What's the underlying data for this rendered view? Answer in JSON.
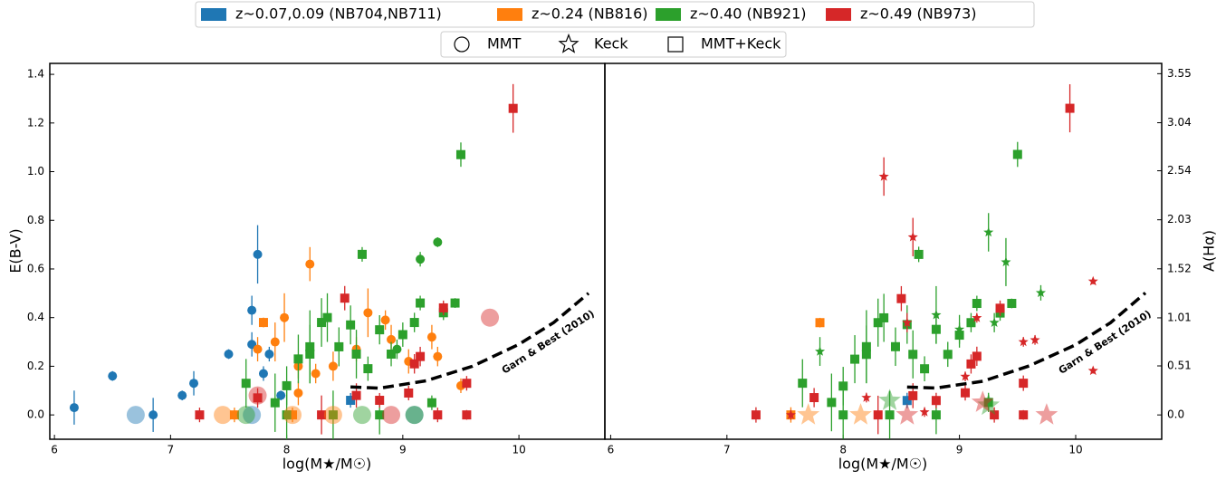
{
  "legend": {
    "groups": [
      {
        "label": "z~0.07,0.09 (NB704,NB711)",
        "color": "#1f77b4"
      },
      {
        "label": "z~0.24 (NB816)",
        "color": "#ff7f0e"
      },
      {
        "label": "z~0.40 (NB921)",
        "color": "#2ca02c"
      },
      {
        "label": "z~0.49 (NB973)",
        "color": "#d62728"
      }
    ],
    "markers": [
      {
        "label": "MMT",
        "shape": "circle"
      },
      {
        "label": "Keck",
        "shape": "star"
      },
      {
        "label": "MMT+Keck",
        "shape": "square"
      }
    ]
  },
  "chart_data": [
    {
      "type": "scatter",
      "xlabel": "log(M★/M☉)",
      "ylabel": "E(B-V)",
      "xlim": [
        5.96,
        10.74
      ],
      "xticks": [
        6,
        7,
        8,
        9,
        10
      ],
      "ylim": [
        -0.1,
        1.445
      ],
      "yticks": [
        {
          "value": 0,
          "label": "0.0"
        },
        0.2,
        0.4,
        0.6,
        0.8,
        {
          "value": 1,
          "label": "1.0"
        },
        1.2,
        1.4
      ],
      "curve": {
        "label": "Garn & Best (2010)",
        "x": [
          8.55,
          8.8,
          9.2,
          9.6,
          10.0,
          10.3,
          10.6
        ],
        "values": [
          0.115,
          0.11,
          0.14,
          0.2,
          0.29,
          0.38,
          0.5
        ]
      },
      "series": [
        {
          "color": "#1f77b4",
          "marker": "circle",
          "x": [
            6.17,
            6.5,
            7.1,
            7.2,
            7.5,
            7.7,
            7.75,
            7.8,
            7.85,
            7.7,
            7.95,
            6.85
          ],
          "values": [
            0.03,
            0.16,
            0.08,
            0.13,
            0.25,
            0.43,
            0.66,
            0.17,
            0.25,
            0.29,
            0.08,
            0.0
          ],
          "errors": [
            0.07,
            0.02,
            0.02,
            0.05,
            0.02,
            0.06,
            0.12,
            0.03,
            0.03,
            0.05,
            0.02,
            0.07
          ]
        },
        {
          "color": "#1f77b4",
          "marker": "square",
          "x": [
            8.55
          ],
          "values": [
            0.06
          ],
          "errors": [
            0.03
          ]
        },
        {
          "color": "#ff7f0e",
          "marker": "circle",
          "x": [
            7.75,
            7.9,
            7.98,
            8.1,
            8.2,
            8.25,
            8.4,
            8.6,
            8.7,
            8.85,
            8.9,
            9.05,
            9.25,
            9.3,
            9.5,
            8.1
          ],
          "values": [
            0.27,
            0.3,
            0.4,
            0.2,
            0.62,
            0.17,
            0.2,
            0.27,
            0.42,
            0.39,
            0.31,
            0.22,
            0.32,
            0.24,
            0.12,
            0.09
          ],
          "errors": [
            0.05,
            0.08,
            0.1,
            0.05,
            0.07,
            0.04,
            0.06,
            0.05,
            0.1,
            0.04,
            0.06,
            0.05,
            0.05,
            0.04,
            0.03,
            0.05
          ]
        },
        {
          "color": "#ff7f0e",
          "marker": "square",
          "x": [
            7.8,
            7.55,
            8.05
          ],
          "values": [
            0.38,
            0.0,
            0.0
          ],
          "errors": [
            0.02,
            0.03,
            0.03
          ]
        },
        {
          "color": "#2ca02c",
          "marker": "square",
          "x": [
            7.65,
            7.9,
            8.0,
            8.1,
            8.2,
            8.2,
            8.3,
            8.35,
            8.45,
            8.55,
            8.6,
            8.65,
            8.7,
            8.8,
            8.9,
            9.0,
            9.1,
            9.15,
            9.35,
            9.45,
            9.5,
            9.25,
            8.4,
            8.0,
            8.8
          ],
          "values": [
            0.13,
            0.05,
            0.12,
            0.23,
            0.28,
            0.25,
            0.38,
            0.4,
            0.28,
            0.37,
            0.25,
            0.66,
            0.19,
            0.35,
            0.25,
            0.33,
            0.38,
            0.46,
            0.42,
            0.46,
            1.07,
            0.05,
            0.0,
            0.0,
            0.0
          ],
          "errors": [
            0.1,
            0.12,
            0.08,
            0.1,
            0.15,
            0.12,
            0.1,
            0.1,
            0.08,
            0.08,
            0.1,
            0.03,
            0.05,
            0.06,
            0.05,
            0.05,
            0.04,
            0.03,
            0.03,
            0.02,
            0.05,
            0.03,
            0.1,
            0.1,
            0.08
          ]
        },
        {
          "color": "#2ca02c",
          "marker": "circle",
          "x": [
            9.15,
            9.3,
            8.95
          ],
          "values": [
            0.64,
            0.71,
            0.27
          ],
          "errors": [
            0.03,
            0.02,
            0.04
          ]
        },
        {
          "color": "#d62728",
          "marker": "square",
          "x": [
            7.25,
            7.75,
            8.5,
            8.6,
            8.8,
            9.05,
            9.1,
            9.15,
            9.35,
            9.55,
            9.95,
            9.55,
            8.3,
            9.3
          ],
          "values": [
            0.0,
            0.07,
            0.48,
            0.08,
            0.06,
            0.09,
            0.21,
            0.24,
            0.44,
            0.13,
            1.26,
            0.0,
            0.0,
            0.0
          ],
          "errors": [
            0.03,
            0.04,
            0.05,
            0.05,
            0.03,
            0.03,
            0.04,
            0.04,
            0.03,
            0.03,
            0.1,
            0.02,
            0.08,
            0.03
          ]
        },
        {
          "color": "#1f77b4",
          "marker": "circle",
          "alpha": 0.45,
          "size": "large",
          "x": [
            6.7,
            7.7,
            9.1
          ],
          "values": [
            0.0,
            0.0,
            0.0
          ]
        },
        {
          "color": "#ff7f0e",
          "marker": "circle",
          "alpha": 0.45,
          "size": "large",
          "x": [
            7.45,
            8.05,
            8.4
          ],
          "values": [
            0.0,
            0.0,
            0.0
          ]
        },
        {
          "color": "#2ca02c",
          "marker": "circle",
          "alpha": 0.45,
          "size": "large",
          "x": [
            7.65,
            8.65,
            9.1
          ],
          "values": [
            0.0,
            0.0,
            0.0
          ]
        },
        {
          "color": "#d62728",
          "marker": "circle",
          "alpha": 0.45,
          "size": "large",
          "x": [
            7.75,
            8.9,
            9.75
          ],
          "values": [
            0.08,
            0.0,
            0.4
          ]
        }
      ]
    },
    {
      "type": "scatter",
      "xlabel": "log(M★/M☉)",
      "y2label": "A(Hα)",
      "xlim": [
        5.95,
        10.74
      ],
      "xticks": [
        6,
        7,
        8,
        9,
        10
      ],
      "y2lim": [
        -0.253,
        3.657
      ],
      "y2ticks": [
        {
          "value": 0,
          "label": "0.0"
        },
        0.51,
        1.01,
        1.52,
        2.03,
        2.54,
        3.04,
        3.55
      ],
      "curve": {
        "label": "Garn & Best (2010)",
        "x": [
          8.55,
          8.8,
          9.2,
          9.6,
          10.0,
          10.3,
          10.6
        ],
        "values": [
          0.29,
          0.28,
          0.35,
          0.51,
          0.73,
          0.96,
          1.27
        ]
      },
      "series": [
        {
          "color": "#1f77b4",
          "marker": "square",
          "axis": "y2",
          "x": [
            8.55
          ],
          "values": [
            0.15
          ],
          "errors": [
            0.08
          ]
        },
        {
          "color": "#ff7f0e",
          "marker": "square",
          "axis": "y2",
          "x": [
            7.8,
            7.55
          ],
          "values": [
            0.96,
            0.0
          ],
          "errors": [
            0.05,
            0.08
          ]
        },
        {
          "color": "#2ca02c",
          "marker": "square",
          "axis": "y2",
          "x": [
            7.65,
            7.9,
            8.0,
            8.1,
            8.2,
            8.2,
            8.3,
            8.35,
            8.45,
            8.55,
            8.6,
            8.65,
            8.7,
            8.8,
            8.9,
            9.0,
            9.1,
            9.15,
            9.35,
            9.45,
            9.5,
            9.25,
            8.4,
            8.0,
            8.8
          ],
          "values": [
            0.33,
            0.13,
            0.3,
            0.58,
            0.71,
            0.63,
            0.96,
            1.01,
            0.71,
            0.94,
            0.63,
            1.67,
            0.48,
            0.89,
            0.63,
            0.83,
            0.96,
            1.16,
            1.06,
            1.16,
            2.71,
            0.13,
            0,
            0,
            0
          ],
          "errors": [
            0.25,
            0.3,
            0.2,
            0.25,
            0.38,
            0.3,
            0.25,
            0.25,
            0.2,
            0.2,
            0.25,
            0.08,
            0.13,
            0.15,
            0.13,
            0.13,
            0.1,
            0.08,
            0.08,
            0.05,
            0.13,
            0.08,
            0.25,
            0.25,
            0.2
          ]
        },
        {
          "color": "#d62728",
          "marker": "square",
          "axis": "y2",
          "x": [
            7.25,
            7.75,
            8.5,
            8.6,
            8.8,
            9.05,
            9.1,
            9.15,
            9.35,
            9.55,
            9.95,
            9.55,
            8.3,
            9.3
          ],
          "values": [
            0,
            0.18,
            1.21,
            0.2,
            0.15,
            0.23,
            0.53,
            0.61,
            1.11,
            0.33,
            3.19,
            0,
            0,
            0
          ],
          "errors": [
            0.08,
            0.1,
            0.13,
            0.13,
            0.08,
            0.08,
            0.1,
            0.1,
            0.08,
            0.08,
            0.25,
            0.05,
            0.2,
            0.08
          ]
        },
        {
          "color": "#2ca02c",
          "marker": "star",
          "axis": "y2",
          "x": [
            7.8,
            8.8,
            9.25,
            9.4,
            9.7,
            9.3,
            9.0,
            9.25
          ],
          "values": [
            0.66,
            1.04,
            1.9,
            1.59,
            1.27,
            0.96,
            0.89,
            0.13
          ],
          "errors": [
            0.15,
            0.3,
            0.2,
            0.25,
            0.08,
            0.1,
            0.15,
            0.1
          ]
        },
        {
          "color": "#d62728",
          "marker": "star",
          "axis": "y2",
          "x": [
            8.35,
            8.6,
            8.55,
            9.15,
            9.55,
            9.65,
            10.15,
            10.15,
            9.05,
            8.2,
            8.7,
            7.55
          ],
          "values": [
            2.48,
            1.85,
            0.96,
            1.01,
            0.76,
            0.78,
            1.39,
            0.46,
            0.4,
            0.18,
            0.03,
            0
          ],
          "errors": [
            0.2,
            0.2,
            0.1,
            0.05,
            0.05,
            0.05,
            0.03,
            0.03,
            0.05,
            0.05,
            0.05,
            0.05
          ]
        },
        {
          "color": "#ff7f0e",
          "marker": "star",
          "alpha": 0.45,
          "size": "large",
          "axis": "y2",
          "x": [
            7.7,
            8.15
          ],
          "values": [
            0,
            0
          ]
        },
        {
          "color": "#2ca02c",
          "marker": "star",
          "alpha": 0.45,
          "size": "large",
          "axis": "y2",
          "x": [
            8.4,
            9.25
          ],
          "values": [
            0.15,
            0.1
          ]
        },
        {
          "color": "#d62728",
          "marker": "star",
          "alpha": 0.45,
          "size": "large",
          "axis": "y2",
          "x": [
            9.75,
            9.2,
            8.55
          ],
          "values": [
            0,
            0.13,
            0
          ]
        }
      ]
    }
  ]
}
